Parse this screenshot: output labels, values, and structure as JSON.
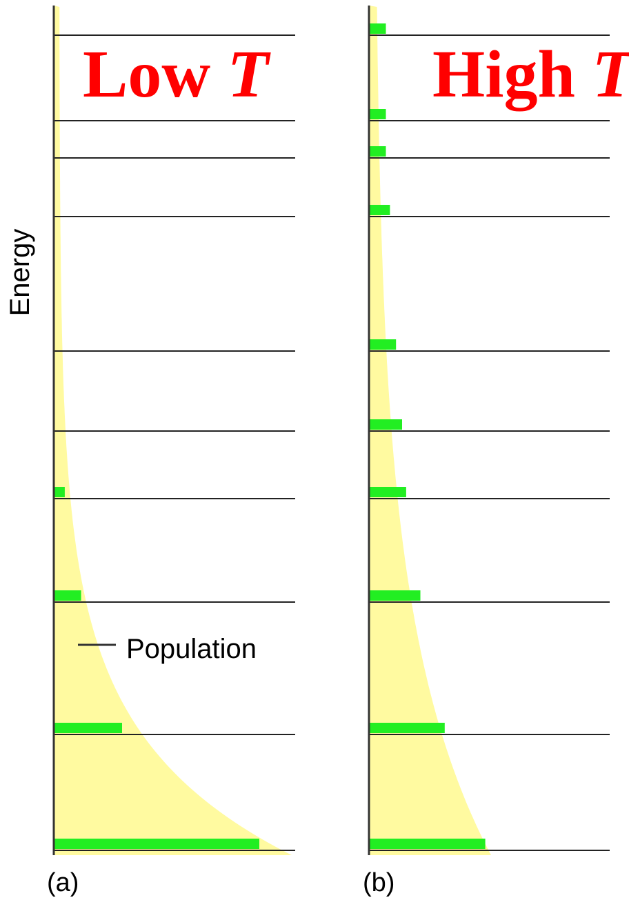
{
  "figure": {
    "y_axis_label": "Energy",
    "legend_label": "Population",
    "colors": {
      "level_line": "#222222",
      "population_bar": "#22ee22",
      "distribution_fill": "#fffaa0",
      "title": "#ff0000",
      "axis": "#333333"
    }
  },
  "panels": [
    {
      "id": "low",
      "title_main": "Low ",
      "title_var": "T",
      "label": "(a)"
    },
    {
      "id": "high",
      "title_main": "High ",
      "title_var": "T",
      "label": "(b)"
    }
  ],
  "chart_data": [
    {
      "type": "bar",
      "panel": "(a)",
      "title": "Low T",
      "ylabel": "Energy",
      "legend": "Population",
      "levels": [
        0,
        1,
        2,
        3,
        4,
        5,
        6,
        7,
        8,
        9
      ],
      "values": [
        1.0,
        0.33,
        0.13,
        0.05,
        0,
        0,
        0,
        0,
        0,
        0
      ]
    },
    {
      "type": "bar",
      "panel": "(b)",
      "title": "High T",
      "ylabel": "Energy",
      "legend": "Population",
      "levels": [
        0,
        1,
        2,
        3,
        4,
        5,
        6,
        7,
        8,
        9
      ],
      "values": [
        0.57,
        0.37,
        0.25,
        0.18,
        0.16,
        0.13,
        0.1,
        0.08,
        0.08,
        0.08
      ]
    }
  ]
}
